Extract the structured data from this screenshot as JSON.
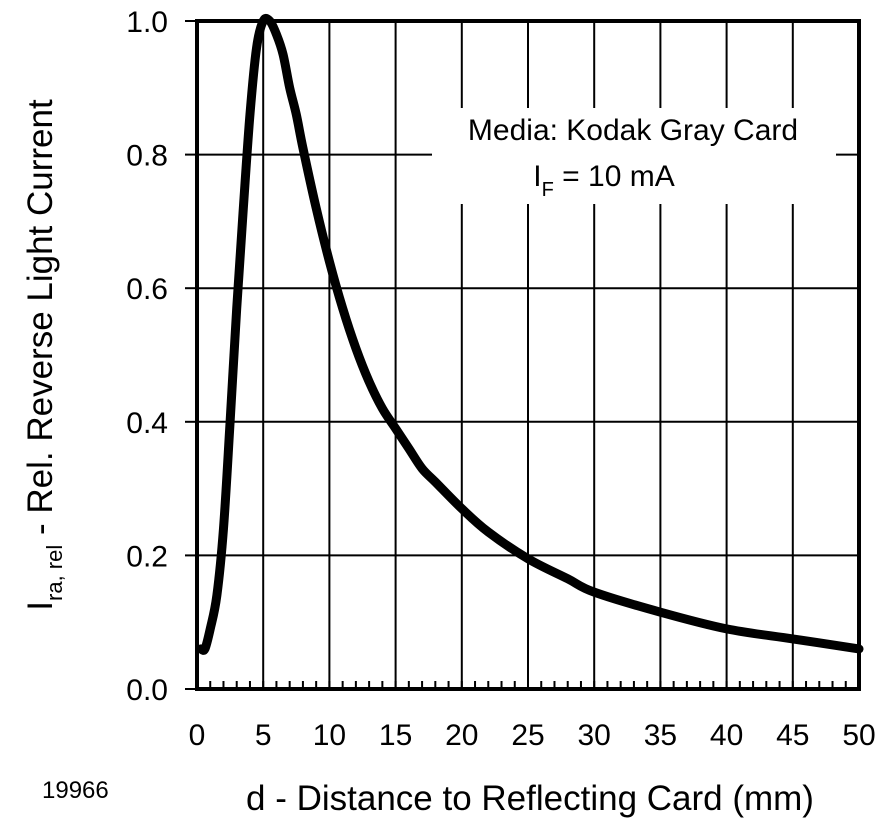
{
  "chart_data": {
    "type": "line",
    "title": "",
    "xlabel": "d - Distance to Reflecting Card (mm)",
    "ylabel": {
      "symbol": "I",
      "subscript": "ra, rel",
      "text": " - Rel. Reverse Light Current"
    },
    "x_ticks": [
      "0",
      "5",
      "10",
      "15",
      "20",
      "25",
      "30",
      "35",
      "40",
      "45",
      "50"
    ],
    "y_ticks": [
      "0.0",
      "0.2",
      "0.4",
      "0.6",
      "0.8",
      "1.0"
    ],
    "xlim": [
      0,
      50
    ],
    "ylim": [
      0,
      1.0
    ],
    "grid": true,
    "annotation": {
      "line1": "Media: Kodak Gray Card",
      "line2_symbol": "I",
      "line2_subscript": "F",
      "line2_rest": " = 10 mA"
    },
    "figure_id": "19966",
    "series": [
      {
        "color": "#000000",
        "x": [
          0.3,
          0.6,
          1.0,
          1.5,
          2.0,
          2.5,
          3.0,
          3.5,
          4.0,
          4.5,
          5.0,
          5.5,
          6.0,
          6.5,
          7.0,
          7.5,
          8.0,
          9.0,
          10.0,
          11.0,
          12.0,
          13.0,
          14.0,
          15.0,
          16.0,
          17.0,
          18.0,
          20.0,
          22.0,
          25.0,
          28.0,
          30.0,
          35.0,
          40.0,
          45.0,
          50.0
        ],
        "y": [
          0.06,
          0.06,
          0.09,
          0.14,
          0.24,
          0.4,
          0.57,
          0.72,
          0.86,
          0.96,
          1.0,
          1.0,
          0.98,
          0.95,
          0.9,
          0.86,
          0.81,
          0.72,
          0.64,
          0.57,
          0.51,
          0.46,
          0.42,
          0.39,
          0.36,
          0.33,
          0.31,
          0.27,
          0.235,
          0.195,
          0.165,
          0.145,
          0.115,
          0.09,
          0.075,
          0.06
        ]
      }
    ]
  }
}
